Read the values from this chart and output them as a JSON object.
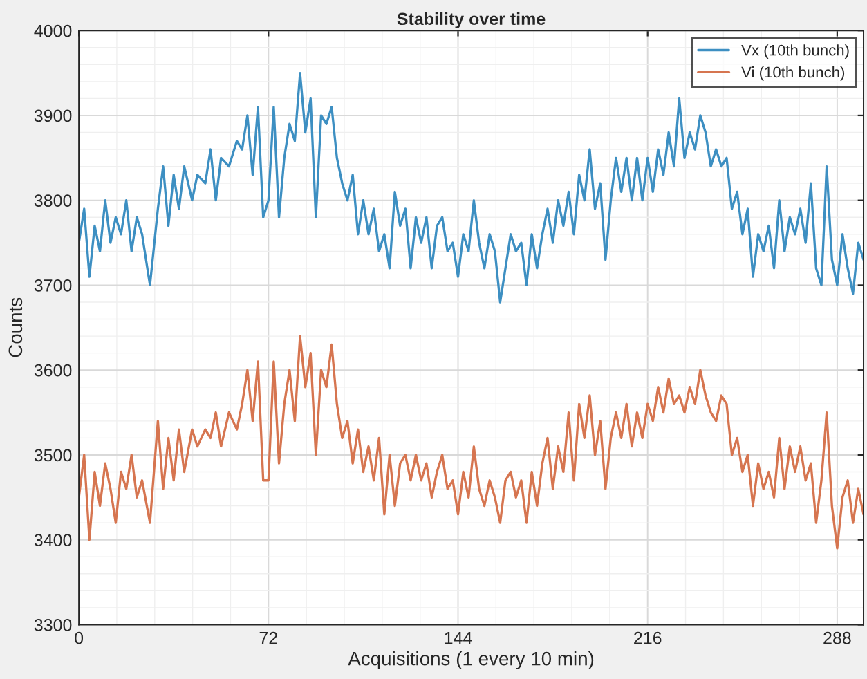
{
  "chart_data": {
    "type": "line",
    "title": "Stability over time",
    "xlabel": "Acquisitions (1 every 10 min)",
    "ylabel": "Counts",
    "x": [
      0,
      2,
      4,
      6,
      8,
      10,
      12,
      14,
      16,
      18,
      20,
      22,
      24,
      27,
      30,
      32,
      34,
      36,
      38,
      40,
      43,
      45,
      48,
      50,
      52,
      54,
      57,
      60,
      62,
      64,
      66,
      68,
      70,
      72,
      74,
      76,
      78,
      80,
      82,
      84,
      86,
      88,
      90,
      92,
      94,
      96,
      98,
      100,
      102,
      104,
      106,
      108,
      110,
      112,
      114,
      116,
      118,
      120,
      122,
      124,
      126,
      128,
      130,
      132,
      134,
      136,
      138,
      140,
      142,
      144,
      146,
      148,
      150,
      152,
      154,
      156,
      158,
      160,
      162,
      164,
      166,
      168,
      170,
      172,
      174,
      176,
      178,
      180,
      182,
      184,
      186,
      188,
      190,
      192,
      194,
      196,
      198,
      200,
      202,
      204,
      206,
      208,
      210,
      212,
      214,
      216,
      218,
      220,
      222,
      224,
      226,
      228,
      230,
      232,
      234,
      236,
      238,
      240,
      242,
      244,
      246,
      248,
      250,
      252,
      254,
      256,
      258,
      260,
      262,
      264,
      266,
      268,
      270,
      272,
      274,
      276,
      278,
      280,
      282,
      284,
      286,
      288,
      290,
      292,
      294,
      296,
      298
    ],
    "series": [
      {
        "name": "Vx (10th bunch)",
        "color": "#3d8fc2",
        "values": [
          3750,
          3790,
          3710,
          3770,
          3740,
          3800,
          3750,
          3780,
          3760,
          3800,
          3740,
          3780,
          3760,
          3700,
          3790,
          3840,
          3770,
          3830,
          3790,
          3840,
          3800,
          3830,
          3820,
          3860,
          3800,
          3850,
          3840,
          3870,
          3860,
          3900,
          3830,
          3910,
          3780,
          3800,
          3910,
          3780,
          3850,
          3890,
          3870,
          3950,
          3880,
          3920,
          3780,
          3900,
          3890,
          3910,
          3850,
          3820,
          3800,
          3830,
          3760,
          3800,
          3760,
          3790,
          3740,
          3760,
          3720,
          3810,
          3770,
          3790,
          3720,
          3780,
          3750,
          3780,
          3720,
          3770,
          3780,
          3740,
          3750,
          3710,
          3760,
          3740,
          3800,
          3750,
          3720,
          3760,
          3740,
          3680,
          3720,
          3760,
          3740,
          3750,
          3700,
          3760,
          3720,
          3760,
          3790,
          3750,
          3800,
          3770,
          3810,
          3760,
          3830,
          3800,
          3860,
          3790,
          3820,
          3730,
          3800,
          3850,
          3810,
          3850,
          3800,
          3850,
          3800,
          3850,
          3810,
          3860,
          3830,
          3880,
          3840,
          3920,
          3850,
          3880,
          3860,
          3900,
          3880,
          3840,
          3860,
          3840,
          3850,
          3790,
          3810,
          3760,
          3790,
          3710,
          3760,
          3740,
          3770,
          3720,
          3800,
          3740,
          3780,
          3760,
          3790,
          3750,
          3820,
          3720,
          3700,
          3840,
          3730,
          3700,
          3760,
          3720,
          3690,
          3750,
          3730
        ]
      },
      {
        "name": "Vi (10th bunch)",
        "color": "#d67550",
        "values": [
          3450,
          3500,
          3400,
          3480,
          3440,
          3490,
          3460,
          3420,
          3480,
          3460,
          3500,
          3450,
          3470,
          3420,
          3540,
          3460,
          3520,
          3470,
          3530,
          3480,
          3530,
          3510,
          3530,
          3520,
          3550,
          3510,
          3550,
          3530,
          3560,
          3600,
          3540,
          3610,
          3470,
          3470,
          3610,
          3490,
          3560,
          3600,
          3540,
          3640,
          3580,
          3620,
          3500,
          3600,
          3580,
          3630,
          3560,
          3520,
          3540,
          3490,
          3530,
          3480,
          3510,
          3470,
          3520,
          3430,
          3500,
          3440,
          3490,
          3500,
          3470,
          3500,
          3470,
          3490,
          3450,
          3480,
          3500,
          3460,
          3470,
          3430,
          3480,
          3450,
          3510,
          3460,
          3440,
          3470,
          3450,
          3420,
          3470,
          3480,
          3450,
          3470,
          3420,
          3480,
          3440,
          3490,
          3520,
          3460,
          3510,
          3480,
          3550,
          3470,
          3560,
          3520,
          3570,
          3500,
          3540,
          3460,
          3520,
          3550,
          3520,
          3560,
          3510,
          3550,
          3520,
          3560,
          3540,
          3580,
          3550,
          3590,
          3560,
          3570,
          3550,
          3580,
          3560,
          3600,
          3570,
          3550,
          3540,
          3570,
          3560,
          3500,
          3520,
          3480,
          3500,
          3440,
          3490,
          3460,
          3480,
          3450,
          3520,
          3460,
          3510,
          3480,
          3510,
          3470,
          3490,
          3420,
          3470,
          3550,
          3440,
          3390,
          3450,
          3470,
          3420,
          3460,
          3430
        ]
      }
    ],
    "xlim": [
      0,
      298
    ],
    "xticks": [
      0,
      72,
      144,
      216,
      288
    ],
    "ylim": [
      3300,
      4000
    ],
    "yticks": [
      3300,
      3400,
      3500,
      3600,
      3700,
      3800,
      3900,
      4000
    ],
    "grid": true,
    "legend": "top right",
    "line_style": "solid",
    "marker": "none"
  }
}
